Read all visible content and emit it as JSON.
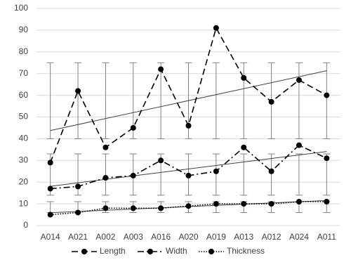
{
  "chart_data": {
    "type": "line",
    "categories": [
      "A014",
      "A021",
      "A002",
      "A003",
      "A016",
      "A020",
      "A019",
      "A013",
      "A012",
      "A024",
      "A011"
    ],
    "series": [
      {
        "name": "Length",
        "color": "#000000",
        "dash": "9,5",
        "values": [
          29,
          62,
          36,
          45,
          72,
          46,
          91,
          68,
          57,
          67,
          60
        ],
        "error_bar": [
          40,
          75
        ]
      },
      {
        "name": "Width",
        "color": "#000000",
        "dash": "9,4,2,4",
        "values": [
          17,
          18,
          22,
          23,
          30,
          23,
          25,
          36,
          25,
          37,
          31
        ],
        "error_bar": [
          14,
          33
        ]
      },
      {
        "name": "Thickness",
        "color": "#000000",
        "dash": "1.5,2",
        "values": [
          5,
          6,
          8,
          8,
          8,
          9,
          10,
          10,
          10,
          11,
          11
        ],
        "error_bar": [
          6,
          11
        ]
      }
    ],
    "ylim": [
      0,
      100
    ],
    "yticks": [
      0,
      10,
      20,
      30,
      40,
      50,
      60,
      70,
      80,
      90,
      100
    ],
    "grid": true,
    "trendline": true,
    "legend": "bottom"
  }
}
